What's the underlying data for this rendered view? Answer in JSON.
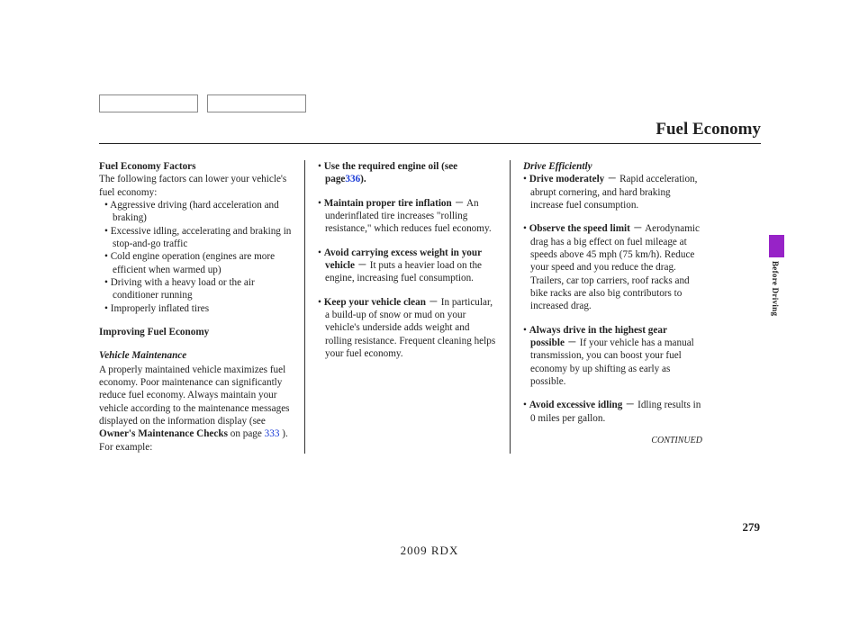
{
  "header": {
    "title": "Fuel Economy"
  },
  "col1": {
    "factors_heading": "Fuel Economy Factors",
    "factors_intro": "The following factors can lower your vehicle's fuel economy:",
    "factors": [
      "Aggressive driving (hard acceleration and braking)",
      "Excessive idling, accelerating and braking in stop-and-go traffic",
      "Cold engine operation (engines are more efficient when warmed up)",
      "Driving with a heavy load or the air conditioner running",
      "Improperly inflated tires"
    ],
    "improve_heading": "Improving Fuel Economy",
    "vm_heading": "Vehicle Maintenance",
    "vm_body1": "A properly maintained vehicle maximizes fuel economy. Poor maintenance can significantly reduce fuel economy. Always maintain your vehicle according to the maintenance messages displayed on the information display (see ",
    "vm_owners": "Owner's Maintenance Checks",
    "vm_onpage": " on page ",
    "vm_pg": "333",
    "vm_body2": " ). For example:"
  },
  "col2": {
    "items": [
      {
        "lead": "Use the required engine oil (see page",
        "pg": "336",
        "close": ")."
      },
      {
        "lead": "Maintain proper tire inflation",
        "dash": "－",
        "body": "An underinflated tire increases \"rolling resistance,\" which reduces fuel economy."
      },
      {
        "lead": "Avoid carrying excess weight in your vehicle",
        "dash": "－",
        "body": "It puts a heavier load on the engine, increasing fuel consumption."
      },
      {
        "lead": "Keep your vehicle clean",
        "dash": "－",
        "body": "In particular, a build-up of snow or mud on your vehicle's underside adds weight and rolling resistance. Frequent cleaning helps your fuel economy."
      }
    ]
  },
  "col3": {
    "heading": "Drive Efficiently",
    "items": [
      {
        "lead": "Drive moderately",
        "dash": "－",
        "body": "Rapid acceleration, abrupt cornering, and hard braking increase fuel consumption."
      },
      {
        "lead": "Observe the speed limit",
        "dash": "－",
        "body": "Aerodynamic drag has a big effect on fuel mileage at speeds above 45 mph (75 km/h). Reduce your speed and you reduce the drag. Trailers, car top carriers, roof racks and bike racks are also big contributors to increased drag."
      },
      {
        "lead": "Always drive in the highest gear possible",
        "dash": "－",
        "body": "If your vehicle has a manual transmission, you can boost your fuel economy by up shifting as early as possible."
      },
      {
        "lead": "Avoid excessive idling",
        "dash": "－",
        "body": "Idling results in 0 miles per gallon."
      }
    ],
    "continued": "CONTINUED"
  },
  "footer": {
    "pagenum": "279",
    "model": "2009  RDX"
  },
  "sidetab": {
    "label": "Before Driving",
    "color": "#9723c7"
  }
}
